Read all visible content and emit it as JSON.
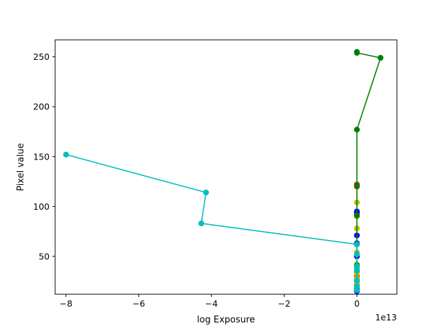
{
  "chart_data": {
    "type": "line",
    "title": "",
    "xlabel": "log Exposure",
    "ylabel": "Pixel value",
    "x_offset_text": "1e13",
    "xlim": [
      -8.3,
      1.1
    ],
    "ylim": [
      12,
      267
    ],
    "xticks": [
      -8,
      -6,
      -4,
      -2,
      0
    ],
    "xtick_labels": [
      "−8",
      "−6",
      "−4",
      "−2",
      "0"
    ],
    "yticks": [
      50,
      100,
      150,
      200,
      250
    ],
    "ytick_labels": [
      "50",
      "100",
      "150",
      "200",
      "250"
    ],
    "grid": false,
    "legend": "none",
    "series": [
      {
        "color": "#ff0000",
        "markers_only": true,
        "points": [
          [
            0,
            122
          ],
          [
            0,
            120
          ],
          [
            0,
            92
          ],
          [
            0,
            63
          ],
          [
            0,
            62
          ],
          [
            0,
            40
          ],
          [
            0,
            36
          ],
          [
            0,
            30
          ],
          [
            0,
            22
          ],
          [
            0,
            16
          ]
        ]
      },
      {
        "color": "#0000ff",
        "markers_only": true,
        "points": [
          [
            0,
            95
          ],
          [
            0,
            94
          ],
          [
            0,
            71
          ],
          [
            0,
            63
          ],
          [
            0,
            50
          ],
          [
            0,
            40
          ],
          [
            0,
            34
          ],
          [
            0,
            25
          ],
          [
            0,
            20
          ],
          [
            0,
            15
          ]
        ]
      },
      {
        "color": "#bfbf00",
        "markers_only": true,
        "points": [
          [
            0,
            104
          ],
          [
            0,
            90
          ],
          [
            0,
            78
          ],
          [
            0,
            54
          ],
          [
            0,
            42
          ],
          [
            0,
            38
          ],
          [
            0,
            33
          ],
          [
            0,
            28
          ],
          [
            0,
            23
          ],
          [
            0,
            18
          ]
        ]
      },
      {
        "color": "#008000",
        "markers_only": false,
        "points": [
          [
            0,
            255
          ],
          [
            0,
            254
          ],
          [
            0.65,
            249
          ],
          [
            0,
            177
          ],
          [
            0,
            121
          ],
          [
            0,
            91
          ],
          [
            0,
            62
          ],
          [
            0,
            41
          ],
          [
            0,
            36
          ],
          [
            0,
            18
          ]
        ]
      },
      {
        "color": "#00bfbf",
        "markers_only": false,
        "points": [
          [
            -8.0,
            152
          ],
          [
            -4.15,
            114
          ],
          [
            -4.28,
            83
          ],
          [
            0,
            62
          ],
          [
            0,
            52
          ],
          [
            0,
            40
          ],
          [
            0,
            36
          ],
          [
            0,
            26
          ],
          [
            0,
            20
          ],
          [
            0,
            16
          ]
        ]
      }
    ]
  }
}
